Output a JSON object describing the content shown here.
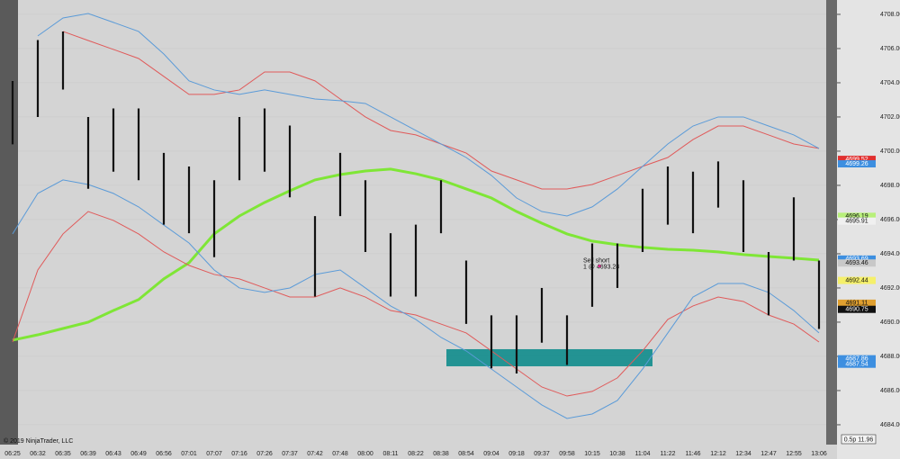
{
  "chart_data": {
    "type": "ohlc",
    "categories": [
      "06:25",
      "06:32",
      "06:35",
      "06:39",
      "06:43",
      "06:49",
      "06:56",
      "07:01",
      "07:07",
      "07:16",
      "07:26",
      "07:37",
      "07:42",
      "07:48",
      "08:00",
      "08:11",
      "08:22",
      "08:38",
      "08:54",
      "09:04",
      "09:18",
      "09:37",
      "09:58",
      "10:15",
      "10:38",
      "11:04",
      "11:22",
      "11:46",
      "12:12",
      "12:34",
      "12:47",
      "12:55",
      "13:06"
    ],
    "high": [
      4704.1,
      4706.5,
      4707.0,
      4702.0,
      4702.5,
      4702.5,
      4699.9,
      4699.1,
      4698.3,
      4702.0,
      4702.5,
      4701.5,
      4696.2,
      4699.9,
      4698.3,
      4695.2,
      4695.7,
      4698.3,
      4693.6,
      4690.4,
      4690.4,
      4692.0,
      4690.4,
      4694.6,
      4694.6,
      4697.8,
      4699.1,
      4698.8,
      4699.4,
      4698.3,
      4694.1,
      4697.3,
      4693.6
    ],
    "low": [
      4700.4,
      4702.0,
      4703.6,
      4697.8,
      4698.8,
      4698.3,
      4695.7,
      4695.2,
      4693.8,
      4698.3,
      4698.8,
      4697.3,
      4691.5,
      4696.2,
      4694.1,
      4691.5,
      4691.5,
      4695.2,
      4689.9,
      4687.3,
      4687.0,
      4688.8,
      4687.5,
      4690.9,
      4692.0,
      4694.1,
      4695.7,
      4695.2,
      4696.7,
      4694.1,
      4690.4,
      4693.6,
      4689.6
    ],
    "bar_color": "#111111",
    "series": [
      {
        "color": "#7fe636",
        "values": [
          4688.95,
          4689.26,
          4689.63,
          4690.0,
          4690.68,
          4691.32,
          4692.53,
          4693.47,
          4695.16,
          4696.21,
          4697.0,
          4697.68,
          4698.32,
          4698.63,
          4698.84,
          4698.95,
          4698.68,
          4698.32,
          4697.79,
          4697.26,
          4696.47,
          4695.79,
          4695.16,
          4694.74,
          4694.53,
          4694.37,
          4694.26,
          4694.21,
          4694.11,
          4693.95,
          4693.84,
          4693.74,
          4693.63
        ]
      },
      {
        "color": "#e05a5a",
        "values": [
          null,
          null,
          4707.0,
          4706.47,
          4705.95,
          4705.42,
          4704.37,
          4703.32,
          4703.32,
          4703.58,
          4704.63,
          4704.63,
          4704.11,
          4703.05,
          4702.0,
          4701.21,
          4700.95,
          4700.42,
          4699.89,
          4698.84,
          4698.32,
          4697.79,
          4697.79,
          4698.05,
          4698.58,
          4699.11,
          4699.63,
          4700.68,
          4701.47,
          4701.47,
          4700.95,
          4700.42,
          4700.16
        ]
      },
      {
        "color": "#e05a5a",
        "values": [
          4688.84,
          4693.05,
          4695.16,
          4696.47,
          4695.95,
          4695.16,
          4694.11,
          4693.32,
          4692.79,
          4692.53,
          4692.0,
          4691.47,
          4691.47,
          4692.0,
          4691.47,
          4690.68,
          4690.42,
          4689.89,
          4689.37,
          4688.32,
          4687.26,
          4686.21,
          4685.68,
          4685.95,
          4686.74,
          4688.32,
          4690.16,
          4690.95,
          4691.47,
          4691.21,
          4690.42,
          4689.89,
          4688.84
        ]
      },
      {
        "color": "#5b9bd8",
        "values": [
          null,
          4706.74,
          4707.79,
          4708.05,
          4707.53,
          4707.0,
          4705.68,
          4704.11,
          4703.58,
          4703.32,
          4703.58,
          4703.32,
          4703.05,
          4702.95,
          4702.79,
          4702.0,
          4701.21,
          4700.42,
          4699.63,
          4698.58,
          4697.26,
          4696.47,
          4696.21,
          4696.74,
          4697.79,
          4699.11,
          4700.42,
          4701.47,
          4702.0,
          4702.0,
          4701.47,
          4700.95,
          4700.16
        ]
      },
      {
        "color": "#5b9bd8",
        "values": [
          4695.16,
          4697.53,
          4698.32,
          4698.05,
          4697.53,
          4696.74,
          4695.68,
          4694.63,
          4693.05,
          4692.0,
          4691.74,
          4692.0,
          4692.79,
          4693.05,
          4692.0,
          4690.95,
          4690.16,
          4689.11,
          4688.32,
          4687.26,
          4686.21,
          4685.16,
          4684.37,
          4684.63,
          4685.42,
          4687.26,
          4689.37,
          4691.47,
          4692.26,
          4692.26,
          4691.74,
          4690.68,
          4689.37
        ]
      }
    ],
    "ylim": [
      4682.84,
      4708.84
    ],
    "yticks": [
      {
        "value": 4684,
        "label": "4684.00"
      },
      {
        "value": 4686,
        "label": "4686.00"
      },
      {
        "value": 4688,
        "label": "4688.00"
      },
      {
        "value": 4690,
        "label": "4690.00"
      },
      {
        "value": 4692,
        "label": "4692.00"
      },
      {
        "value": 4694,
        "label": "4694.00"
      },
      {
        "value": 4696,
        "label": "4696.00"
      },
      {
        "value": 4698,
        "label": "4698.00"
      },
      {
        "value": 4700,
        "label": "4700.00"
      },
      {
        "value": 4702,
        "label": "4702.00"
      },
      {
        "value": 4704,
        "label": "4704.00"
      },
      {
        "value": 4706,
        "label": "4706.00"
      },
      {
        "value": 4708,
        "label": "4708.00"
      }
    ],
    "price_markers": [
      {
        "value": 4699.52,
        "color": "#e03030"
      },
      {
        "value": 4699.26,
        "color": "#3d8fe0"
      },
      {
        "value": 4696.19,
        "color": "#b8f07a"
      },
      {
        "value": 4695.91,
        "color": "#f0f0f0"
      },
      {
        "value": 4693.69,
        "color": "#3d8fe0"
      },
      {
        "value": 4693.46,
        "color": "#c8c8c8"
      },
      {
        "value": 4692.44,
        "color": "#f5f06a"
      },
      {
        "value": 4691.11,
        "color": "#e0a030"
      },
      {
        "value": 4690.75,
        "color": "#111111"
      },
      {
        "value": 4687.86,
        "color": "#3d8fe0"
      },
      {
        "value": 4687.54,
        "color": "#3d8fe0"
      }
    ],
    "zone": {
      "from": "08:38",
      "to": "11:04",
      "low": 4687.42,
      "high": 4688.42,
      "color": "#108c8c"
    },
    "annotation": {
      "title": "Sell short",
      "text": "1 @ 4693.28",
      "at": "10:15",
      "price": 4693.28
    },
    "copyright": "© 2019 NinjaTrader, LLC",
    "status": "0.5p 11.96"
  }
}
